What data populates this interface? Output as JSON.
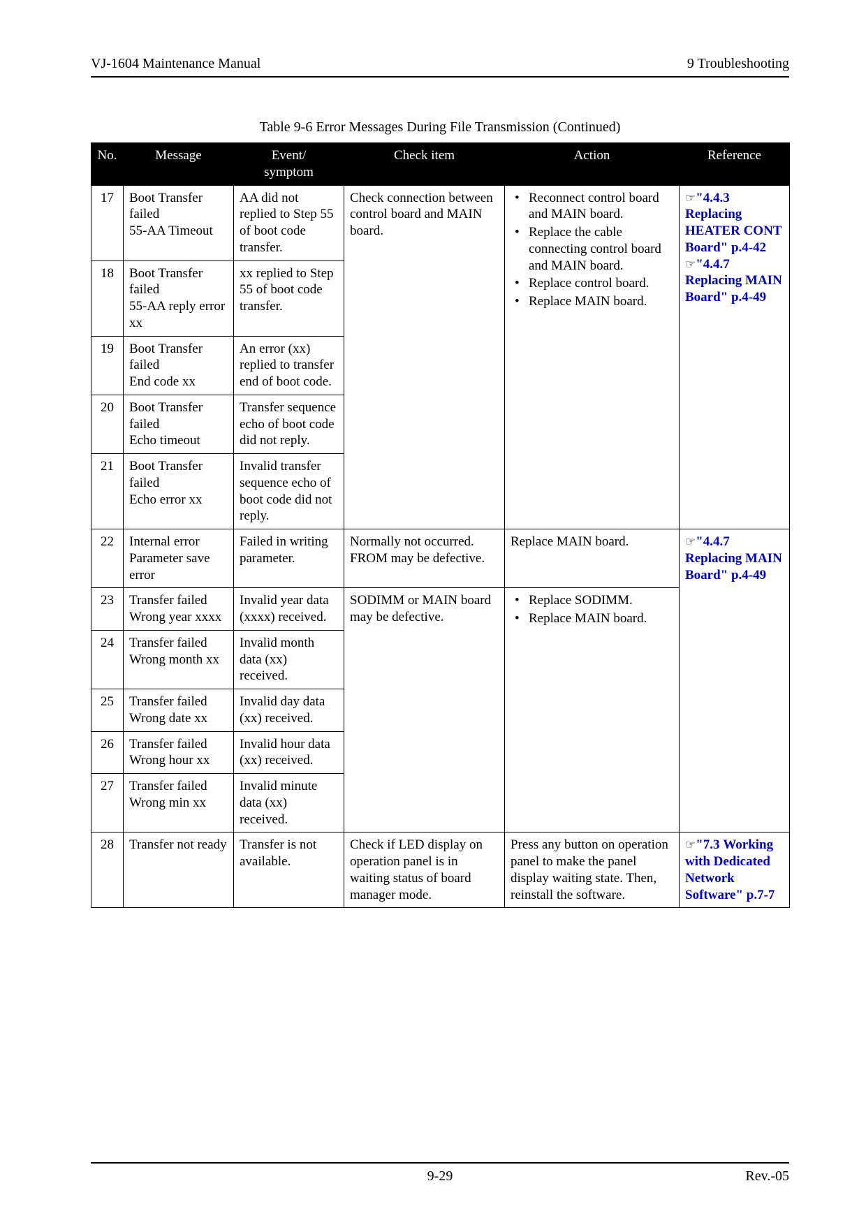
{
  "header": {
    "left": "VJ-1604   Maintenance Manual",
    "right": "9 Troubleshooting"
  },
  "caption": "Table 9-6 Error Messages During File Transmission (Continued)",
  "columns": [
    "No.",
    "Message",
    "Event/\nsymptom",
    "Check item",
    "Action",
    "Reference"
  ],
  "footer": {
    "page": "9-29",
    "rev": "Rev.-05"
  },
  "r17": {
    "no": "17",
    "msg": "Boot Transfer failed\n55-AA Timeout",
    "evt": "AA did not replied to Step 55 of boot code transfer."
  },
  "r18": {
    "no": "18",
    "msg": "Boot Transfer failed\n55-AA reply error xx",
    "evt": "xx replied to Step 55 of boot code transfer."
  },
  "r19": {
    "no": "19",
    "msg": "Boot Transfer failed\nEnd code xx",
    "evt": "An error (xx) replied to transfer end of boot code."
  },
  "r20": {
    "no": "20",
    "msg": "Boot Transfer failed\nEcho timeout",
    "evt": "Transfer sequence echo of boot code did not reply."
  },
  "r21": {
    "no": "21",
    "msg": "Boot Transfer failed\nEcho error xx",
    "evt": "Invalid transfer sequence echo of boot code did not reply."
  },
  "chk_17_21": "Check connection between control board and MAIN board.",
  "act_17_21": {
    "a": "Reconnect control board and MAIN board.",
    "b": "Replace the cable connecting control board and MAIN board.",
    "c": "Replace control board.",
    "d": "Replace MAIN board."
  },
  "ref_17_21": {
    "l1_num": "\"4.4.3",
    "l1_txt": "Replacing HEATER CONT Board\"",
    "l1_pg": " p.4-42",
    "l2_num": "\"4.4.7",
    "l2_txt": "Replacing MAIN Board\"",
    "l2_pg": " p.4-49"
  },
  "r22": {
    "no": "22",
    "msg": "Internal error\nParameter save error",
    "evt": "Failed in writing parameter."
  },
  "r23": {
    "no": "23",
    "msg": "Transfer failed\nWrong year xxxx",
    "evt": "Invalid year data (xxxx) received."
  },
  "r24": {
    "no": "24",
    "msg": "Transfer failed\nWrong month xx",
    "evt": "Invalid month data (xx) received."
  },
  "r25": {
    "no": "25",
    "msg": "Transfer failed\nWrong date xx",
    "evt": "Invalid day data (xx) received."
  },
  "r26": {
    "no": "26",
    "msg": "Transfer failed\nWrong hour xx",
    "evt": "Invalid hour data (xx) received."
  },
  "r27": {
    "no": "27",
    "msg": "Transfer failed\nWrong min xx",
    "evt": "Invalid minute data (xx) received."
  },
  "chk_22": "Normally not occurred. FROM may be defective.",
  "act_22": "Replace MAIN board.",
  "chk_23_27": "SODIMM or MAIN board may be defective.",
  "act_23_27": {
    "a": "Replace SODIMM.",
    "b": "Replace MAIN board."
  },
  "ref_22_27": {
    "num": "\"4.4.7",
    "txt": "Replacing MAIN Board\"",
    "pg": " p.4-49"
  },
  "r28": {
    "no": "28",
    "msg": "Transfer not ready",
    "evt": "Transfer is not available.",
    "chk": "Check if LED display on operation panel is in waiting status of board manager mode.",
    "act": "Press any button on operation panel to make the panel display waiting state. Then, reinstall the software.",
    "ref_num": "\"7.3",
    "ref_txt": "Working with Dedicated Network Software\"",
    "ref_pg": "p.7-7"
  }
}
